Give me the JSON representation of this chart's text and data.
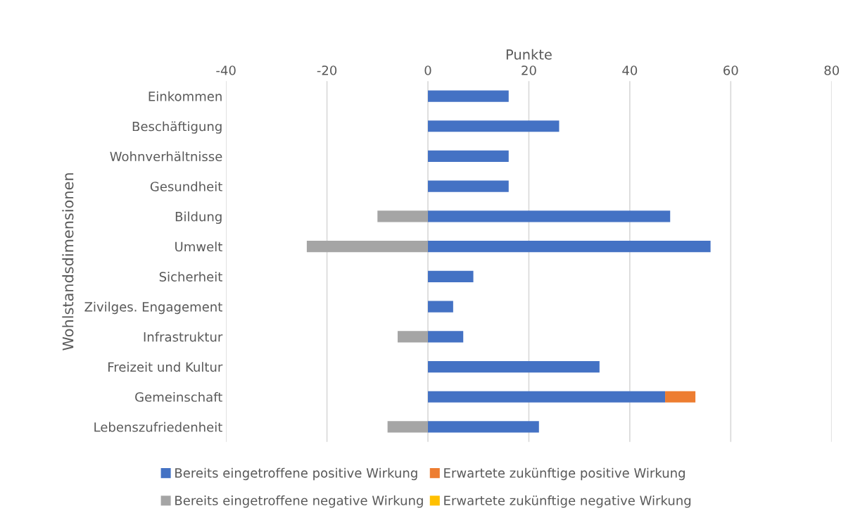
{
  "chart_data": {
    "type": "bar",
    "orientation": "horizontal",
    "stacked": true,
    "xlabel": "Punkte",
    "ylabel": "Wohlstandsdimensionen",
    "categories": [
      "Einkommen",
      "Beschäftigung",
      "Wohnverhältnisse",
      "Gesundheit",
      "Bildung",
      "Umwelt",
      "Sicherheit",
      "Zivilges. Engagement",
      "Infrastruktur",
      "Freizeit und Kultur",
      "Gemeinschaft",
      "Lebenszufriedenheit"
    ],
    "series": [
      {
        "name": "Bereits eingetroffene positive Wirkung",
        "color": "#4472c4",
        "values": [
          16,
          26,
          16,
          16,
          48,
          56,
          9,
          5,
          7,
          34,
          47,
          22
        ]
      },
      {
        "name": "Erwartete zukünftige positive Wirkung",
        "color": "#ed7d31",
        "values": [
          null,
          null,
          null,
          null,
          null,
          null,
          null,
          null,
          null,
          null,
          6,
          null
        ]
      },
      {
        "name": "Bereits eingetroffene negative Wirkung",
        "color": "#a5a5a5",
        "values": [
          null,
          null,
          null,
          null,
          -10,
          -24,
          null,
          null,
          -6,
          null,
          null,
          -8
        ]
      },
      {
        "name": "Erwartete zukünftige negative Wirkung",
        "color": "#ffc000",
        "values": [
          null,
          null,
          null,
          null,
          null,
          null,
          null,
          null,
          null,
          null,
          null,
          null
        ]
      }
    ],
    "xlim": [
      -40,
      80
    ],
    "xticks": [
      -40,
      -20,
      0,
      20,
      40,
      60,
      80
    ],
    "grid": "x",
    "legend": "bottom"
  }
}
